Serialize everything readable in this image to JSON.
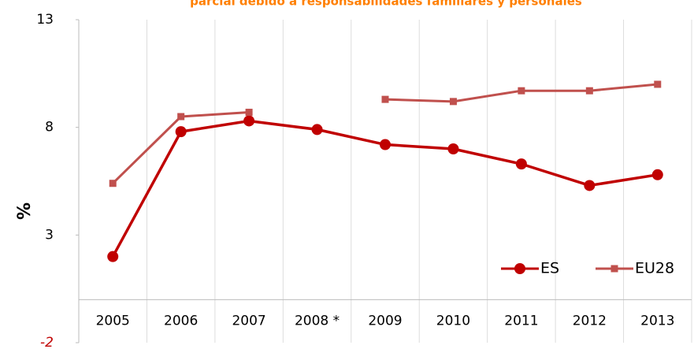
{
  "chart_data": {
    "type": "line",
    "title": "parcial debido a responsabilidades familiares y personales",
    "y_label": "%",
    "categories": [
      "2005",
      "2006",
      "2007",
      "2008 *",
      "2009",
      "2010",
      "2011",
      "2012",
      "2013"
    ],
    "series": [
      {
        "name": "ES",
        "color": "#c00000",
        "marker": "circle",
        "values": [
          2.0,
          7.8,
          8.3,
          7.9,
          7.2,
          7.0,
          6.3,
          5.3,
          5.8
        ]
      },
      {
        "name": "EU28",
        "color": "#c0504d",
        "marker": "square",
        "values": [
          5.4,
          8.5,
          8.7,
          null,
          9.3,
          9.2,
          9.7,
          9.7,
          10.0
        ]
      }
    ],
    "ylim": [
      -2,
      13
    ],
    "yticks": [
      -2,
      3,
      8,
      13
    ],
    "legend": "lower right"
  }
}
